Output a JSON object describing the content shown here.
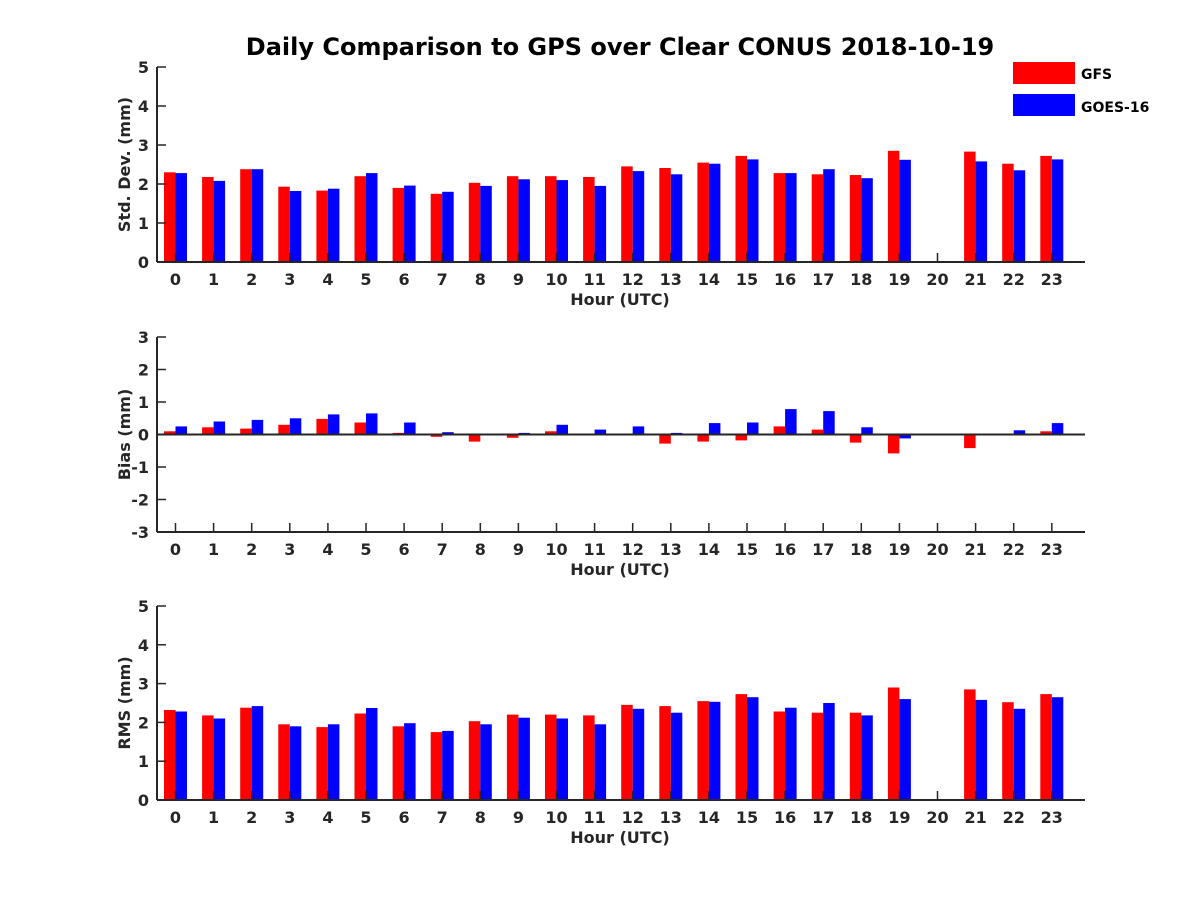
{
  "title": "Daily Comparison to GPS over Clear CONUS 2018-10-19",
  "legend": [
    {
      "name": "GFS",
      "color": "#ff0000"
    },
    {
      "name": "GOES-16",
      "color": "#0000ff"
    }
  ],
  "chart_data": [
    {
      "type": "bar",
      "ylabel": "Std. Dev. (mm)",
      "xlabel": "Hour (UTC)",
      "ylim": [
        0,
        5
      ],
      "yticks": [
        0,
        1,
        2,
        3,
        4,
        5
      ],
      "categories": [
        "0",
        "1",
        "2",
        "3",
        "4",
        "5",
        "6",
        "7",
        "8",
        "9",
        "10",
        "11",
        "12",
        "13",
        "14",
        "15",
        "16",
        "17",
        "18",
        "19",
        "20",
        "21",
        "22",
        "23"
      ],
      "series": [
        {
          "name": "GFS",
          "values": [
            2.3,
            2.18,
            2.38,
            1.93,
            1.83,
            2.2,
            1.9,
            1.75,
            2.03,
            2.2,
            2.2,
            2.18,
            2.45,
            2.41,
            2.55,
            2.72,
            2.28,
            2.25,
            2.23,
            2.85,
            null,
            2.83,
            2.52,
            2.72
          ]
        },
        {
          "name": "GOES-16",
          "values": [
            2.28,
            2.08,
            2.38,
            1.82,
            1.88,
            2.28,
            1.96,
            1.8,
            1.95,
            2.12,
            2.1,
            1.95,
            2.33,
            2.25,
            2.52,
            2.63,
            2.28,
            2.38,
            2.15,
            2.62,
            null,
            2.58,
            2.35,
            2.63
          ]
        }
      ]
    },
    {
      "type": "bar",
      "ylabel": "Bias (mm)",
      "xlabel": "Hour (UTC)",
      "ylim": [
        -3,
        3
      ],
      "yticks": [
        -3,
        -2,
        -1,
        0,
        1,
        2,
        3
      ],
      "categories": [
        "0",
        "1",
        "2",
        "3",
        "4",
        "5",
        "6",
        "7",
        "8",
        "9",
        "10",
        "11",
        "12",
        "13",
        "14",
        "15",
        "16",
        "17",
        "18",
        "19",
        "20",
        "21",
        "22",
        "23"
      ],
      "series": [
        {
          "name": "GFS",
          "values": [
            0.1,
            0.22,
            0.18,
            0.3,
            0.48,
            0.37,
            0.05,
            -0.07,
            -0.22,
            -0.1,
            0.1,
            -0.02,
            -0.03,
            -0.28,
            -0.22,
            -0.18,
            0.25,
            0.15,
            -0.25,
            -0.58,
            null,
            -0.42,
            0.0,
            0.1
          ]
        },
        {
          "name": "GOES-16",
          "values": [
            0.25,
            0.4,
            0.45,
            0.5,
            0.62,
            0.65,
            0.37,
            0.07,
            -0.03,
            0.05,
            0.3,
            0.15,
            0.25,
            0.05,
            0.35,
            0.37,
            0.78,
            0.72,
            0.22,
            -0.12,
            null,
            0.0,
            0.13,
            0.35
          ]
        }
      ]
    },
    {
      "type": "bar",
      "ylabel": "RMS (mm)",
      "xlabel": "Hour (UTC)",
      "ylim": [
        0,
        5
      ],
      "yticks": [
        0,
        1,
        2,
        3,
        4,
        5
      ],
      "categories": [
        "0",
        "1",
        "2",
        "3",
        "4",
        "5",
        "6",
        "7",
        "8",
        "9",
        "10",
        "11",
        "12",
        "13",
        "14",
        "15",
        "16",
        "17",
        "18",
        "19",
        "20",
        "21",
        "22",
        "23"
      ],
      "series": [
        {
          "name": "GFS",
          "values": [
            2.32,
            2.18,
            2.38,
            1.95,
            1.88,
            2.23,
            1.9,
            1.75,
            2.03,
            2.2,
            2.2,
            2.18,
            2.45,
            2.42,
            2.55,
            2.73,
            2.28,
            2.25,
            2.25,
            2.9,
            null,
            2.85,
            2.52,
            2.73
          ]
        },
        {
          "name": "GOES-16",
          "values": [
            2.28,
            2.1,
            2.42,
            1.9,
            1.95,
            2.37,
            1.98,
            1.78,
            1.95,
            2.12,
            2.1,
            1.95,
            2.35,
            2.25,
            2.53,
            2.65,
            2.38,
            2.5,
            2.18,
            2.6,
            null,
            2.58,
            2.35,
            2.65
          ]
        }
      ]
    }
  ]
}
